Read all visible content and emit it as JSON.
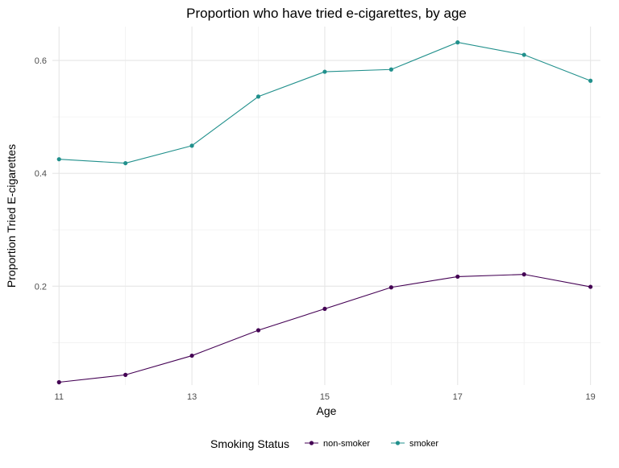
{
  "chart_data": {
    "type": "line",
    "title": "Proportion who have tried e-cigarettes, by age",
    "xlabel": "Age",
    "ylabel": "Proportion Tried E-cigarettes",
    "x": [
      11,
      12,
      13,
      14,
      15,
      16,
      17,
      18,
      19
    ],
    "x_ticks": [
      "11",
      "13",
      "15",
      "17",
      "19"
    ],
    "y_ticks": [
      "0.2",
      "0.4",
      "0.6"
    ],
    "xlim": [
      10.9,
      19.15
    ],
    "ylim": [
      0.025,
      0.66
    ],
    "grid": true,
    "legend": {
      "title": "Smoking Status",
      "position": "bottom"
    },
    "series": [
      {
        "name": "non-smoker",
        "color": "#440154",
        "values": [
          0.03,
          0.043,
          0.077,
          0.122,
          0.16,
          0.198,
          0.217,
          0.221,
          0.199
        ]
      },
      {
        "name": "smoker",
        "color": "#21908C",
        "values": [
          0.425,
          0.418,
          0.449,
          0.536,
          0.58,
          0.584,
          0.632,
          0.61,
          0.564
        ]
      }
    ]
  }
}
